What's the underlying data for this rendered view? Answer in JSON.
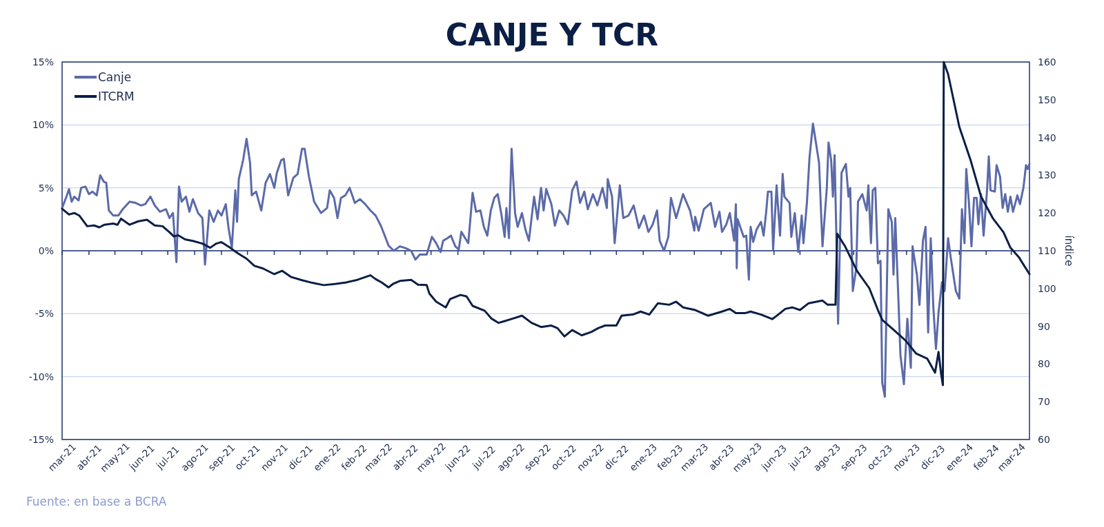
{
  "chart_data": {
    "type": "line",
    "title": "CANJE Y TCR",
    "y2label": "índice",
    "annotations": [
      "Fuente: en base a BCRA"
    ],
    "xlim": [
      "2021-03-01",
      "2024-03-22"
    ],
    "xticks": [
      {
        "value": "2021-03-01",
        "label": "mar-21"
      },
      {
        "value": "2021-04-01",
        "label": "abr-21"
      },
      {
        "value": "2021-05-01",
        "label": "may-21"
      },
      {
        "value": "2021-06-01",
        "label": "jun-21"
      },
      {
        "value": "2021-07-01",
        "label": "jul-21"
      },
      {
        "value": "2021-08-01",
        "label": "ago-21"
      },
      {
        "value": "2021-09-01",
        "label": "sep-21"
      },
      {
        "value": "2021-10-01",
        "label": "oct-21"
      },
      {
        "value": "2021-11-01",
        "label": "nov-21"
      },
      {
        "value": "2021-12-01",
        "label": "dic-21"
      },
      {
        "value": "2022-01-01",
        "label": "ene-22"
      },
      {
        "value": "2022-02-01",
        "label": "feb-22"
      },
      {
        "value": "2022-03-01",
        "label": "mar-22"
      },
      {
        "value": "2022-04-01",
        "label": "abr-22"
      },
      {
        "value": "2022-05-01",
        "label": "may-22"
      },
      {
        "value": "2022-06-01",
        "label": "jun-22"
      },
      {
        "value": "2022-07-01",
        "label": "jul-22"
      },
      {
        "value": "2022-08-01",
        "label": "ago-22"
      },
      {
        "value": "2022-09-01",
        "label": "sep-22"
      },
      {
        "value": "2022-10-01",
        "label": "oct-22"
      },
      {
        "value": "2022-11-01",
        "label": "nov-22"
      },
      {
        "value": "2022-12-01",
        "label": "dic-22"
      },
      {
        "value": "2023-01-01",
        "label": "ene-23"
      },
      {
        "value": "2023-02-01",
        "label": "feb-23"
      },
      {
        "value": "2023-03-01",
        "label": "mar-23"
      },
      {
        "value": "2023-04-01",
        "label": "abr-23"
      },
      {
        "value": "2023-05-01",
        "label": "may-23"
      },
      {
        "value": "2023-06-01",
        "label": "jun-23"
      },
      {
        "value": "2023-07-01",
        "label": "jul-23"
      },
      {
        "value": "2023-08-01",
        "label": "ago-23"
      },
      {
        "value": "2023-09-01",
        "label": "sep-23"
      },
      {
        "value": "2023-10-01",
        "label": "oct-23"
      },
      {
        "value": "2023-11-01",
        "label": "nov-23"
      },
      {
        "value": "2023-12-01",
        "label": "dic-23"
      },
      {
        "value": "2024-01-01",
        "label": "ene-24"
      },
      {
        "value": "2024-02-01",
        "label": "feb-24"
      },
      {
        "value": "2024-03-01",
        "label": "mar-24"
      }
    ],
    "ylim": [
      -15,
      15
    ],
    "yticks": [
      {
        "value": -15,
        "label": "-15%"
      },
      {
        "value": -10,
        "label": "-10%"
      },
      {
        "value": -5,
        "label": "-5%"
      },
      {
        "value": 0,
        "label": "0%"
      },
      {
        "value": 5,
        "label": "5%"
      },
      {
        "value": 10,
        "label": "10%"
      },
      {
        "value": 15,
        "label": "15%"
      }
    ],
    "y2lim": [
      60,
      160
    ],
    "y2ticks": [
      60,
      70,
      80,
      90,
      100,
      110,
      120,
      130,
      140,
      150,
      160
    ],
    "ref_lines": [
      {
        "axis": "y",
        "value": 0,
        "color": "#1d3270"
      }
    ],
    "grid": "y",
    "legend": "top left",
    "line_style": "solid",
    "marker": "none",
    "series": [
      {
        "name": "Canje",
        "color": "#5b6aa8",
        "x": [
          "2021-03-01",
          "2021-03-06",
          "2021-03-09",
          "2021-03-12",
          "2021-03-15",
          "2021-03-20",
          "2021-03-23",
          "2021-03-28",
          "2021-04-01",
          "2021-04-05",
          "2021-04-10",
          "2021-04-14",
          "2021-04-18",
          "2021-04-21",
          "2021-04-24",
          "2021-04-29",
          "2021-05-05",
          "2021-05-10",
          "2021-05-18",
          "2021-05-25",
          "2021-05-31",
          "2021-06-05",
          "2021-06-11",
          "2021-06-16",
          "2021-06-22",
          "2021-06-29",
          "2021-07-03",
          "2021-07-07",
          "2021-07-11",
          "2021-07-14",
          "2021-07-17",
          "2021-07-22",
          "2021-07-26",
          "2021-07-30",
          "2021-08-05",
          "2021-08-10",
          "2021-08-13",
          "2021-08-18",
          "2021-08-23",
          "2021-08-28",
          "2021-09-01",
          "2021-09-06",
          "2021-09-09",
          "2021-09-13",
          "2021-09-17",
          "2021-09-19",
          "2021-09-21",
          "2021-09-26",
          "2021-09-30",
          "2021-10-04",
          "2021-10-06",
          "2021-10-11",
          "2021-10-17",
          "2021-10-22",
          "2021-10-27",
          "2021-11-01",
          "2021-11-04",
          "2021-11-09",
          "2021-11-12",
          "2021-11-17",
          "2021-11-23",
          "2021-11-28",
          "2021-12-03",
          "2021-12-06",
          "2021-12-11",
          "2021-12-17",
          "2021-12-25",
          "2022-01-01",
          "2022-01-04",
          "2022-01-09",
          "2022-01-13",
          "2022-01-17",
          "2022-01-22",
          "2022-01-27",
          "2022-02-02",
          "2022-02-08",
          "2022-02-14",
          "2022-02-20",
          "2022-02-26",
          "2022-03-04",
          "2022-03-08",
          "2022-03-13",
          "2022-03-19",
          "2022-03-23",
          "2022-03-26",
          "2022-04-02",
          "2022-04-08",
          "2022-04-13",
          "2022-04-18",
          "2022-04-26",
          "2022-05-02",
          "2022-05-07",
          "2022-05-12",
          "2022-05-15",
          "2022-05-20",
          "2022-05-24",
          "2022-05-29",
          "2022-06-02",
          "2022-06-05",
          "2022-06-13",
          "2022-06-18",
          "2022-06-22",
          "2022-06-27",
          "2022-07-01",
          "2022-07-05",
          "2022-07-09",
          "2022-07-13",
          "2022-07-17",
          "2022-07-21",
          "2022-07-25",
          "2022-07-27",
          "2022-07-30",
          "2022-08-02",
          "2022-08-06",
          "2022-08-09",
          "2022-08-14",
          "2022-08-18",
          "2022-08-22",
          "2022-08-28",
          "2022-09-01",
          "2022-09-05",
          "2022-09-08",
          "2022-09-11",
          "2022-09-17",
          "2022-09-21",
          "2022-09-26",
          "2022-10-01",
          "2022-10-06",
          "2022-10-11",
          "2022-10-16",
          "2022-10-20",
          "2022-10-25",
          "2022-10-29",
          "2022-11-04",
          "2022-11-09",
          "2022-11-15",
          "2022-11-20",
          "2022-11-21",
          "2022-11-26",
          "2022-11-29",
          "2022-12-05",
          "2022-12-09",
          "2022-12-15",
          "2022-12-21",
          "2022-12-27",
          "2023-01-02",
          "2023-01-07",
          "2023-01-12",
          "2023-01-17",
          "2023-01-20",
          "2023-01-25",
          "2023-01-30",
          "2023-02-02",
          "2023-02-08",
          "2023-02-16",
          "2023-02-24",
          "2023-03-01",
          "2023-03-02",
          "2023-03-06",
          "2023-03-12",
          "2023-03-20",
          "2023-03-25",
          "2023-03-30",
          "2023-04-02",
          "2023-04-07",
          "2023-04-11",
          "2023-04-16",
          "2023-04-18",
          "2023-04-19",
          "2023-04-20",
          "2023-04-24",
          "2023-04-27",
          "2023-04-30",
          "2023-05-03",
          "2023-05-05",
          "2023-05-08",
          "2023-05-12",
          "2023-05-17",
          "2023-05-20",
          "2023-05-23",
          "2023-05-25",
          "2023-05-29",
          "2023-05-31",
          "2023-06-04",
          "2023-06-08",
          "2023-06-11",
          "2023-06-13",
          "2023-06-19",
          "2023-06-21",
          "2023-06-25",
          "2023-06-29",
          "2023-07-03",
          "2023-07-05",
          "2023-07-09",
          "2023-07-12",
          "2023-07-16",
          "2023-07-23",
          "2023-07-27",
          "2023-08-01",
          "2023-08-03",
          "2023-08-06",
          "2023-08-08",
          "2023-08-10",
          "2023-08-12",
          "2023-08-14",
          "2023-08-18",
          "2023-08-23",
          "2023-08-26",
          "2023-08-28",
          "2023-08-31",
          "2023-09-04",
          "2023-09-06",
          "2023-09-11",
          "2023-09-16",
          "2023-09-18",
          "2023-09-21",
          "2023-09-23",
          "2023-09-26",
          "2023-09-29",
          "2023-10-02",
          "2023-10-04",
          "2023-10-07",
          "2023-10-11",
          "2023-10-15",
          "2023-10-17",
          "2023-10-19",
          "2023-10-23",
          "2023-10-25",
          "2023-10-29",
          "2023-11-02",
          "2023-11-06",
          "2023-11-08",
          "2023-11-13",
          "2023-11-16",
          "2023-11-20",
          "2023-11-23",
          "2023-11-26",
          "2023-11-29",
          "2023-12-02",
          "2023-12-05",
          "2023-12-08",
          "2023-12-12",
          "2023-12-15",
          "2023-12-19",
          "2023-12-22",
          "2023-12-28",
          "2024-01-01",
          "2024-01-04",
          "2024-01-07",
          "2024-01-09",
          "2024-01-12",
          "2024-01-15",
          "2024-01-18",
          "2024-01-21",
          "2024-01-23",
          "2024-01-26",
          "2024-01-29",
          "2024-02-02",
          "2024-02-04",
          "2024-02-06",
          "2024-02-11",
          "2024-02-13",
          "2024-02-17",
          "2024-02-20",
          "2024-02-23",
          "2024-02-26",
          "2024-02-29",
          "2024-03-03",
          "2024-03-08",
          "2024-03-11",
          "2024-03-15",
          "2024-03-18",
          "2024-03-20",
          "2024-03-22"
        ],
        "values": [
          3.4,
          4.3,
          4.9,
          3.9,
          4.3,
          4.0,
          5.0,
          5.1,
          4.5,
          4.7,
          4.4,
          6.0,
          5.5,
          5.4,
          3.2,
          2.8,
          2.8,
          3.3,
          3.9,
          3.8,
          3.6,
          3.7,
          4.3,
          3.6,
          3.1,
          3.3,
          2.6,
          3.0,
          -0.9,
          5.1,
          3.9,
          4.3,
          3.1,
          4.1,
          3.0,
          2.6,
          -1.1,
          3.2,
          2.3,
          3.2,
          2.8,
          3.7,
          1.9,
          0.2,
          4.8,
          2.3,
          5.7,
          7.2,
          8.9,
          7.0,
          4.4,
          4.7,
          3.2,
          5.4,
          6.1,
          5.0,
          6.2,
          7.2,
          7.3,
          4.4,
          5.8,
          6.1,
          8.1,
          8.1,
          5.9,
          3.9,
          3.0,
          3.4,
          4.8,
          4.2,
          2.6,
          4.2,
          4.4,
          5.0,
          3.8,
          4.1,
          3.7,
          3.2,
          2.8,
          2.0,
          1.3,
          0.4,
          0.0,
          0.2,
          0.35,
          0.2,
          0.0,
          -0.7,
          -0.3,
          -0.3,
          1.1,
          0.6,
          -0.1,
          0.8,
          1.0,
          1.2,
          0.35,
          0.1,
          1.5,
          0.6,
          4.6,
          3.1,
          3.2,
          1.9,
          1.2,
          3.2,
          4.2,
          4.5,
          3.0,
          1.1,
          3.4,
          1.0,
          8.1,
          3.0,
          1.9,
          3.0,
          1.7,
          0.8,
          4.3,
          2.5,
          5.0,
          3.2,
          4.9,
          3.7,
          2.0,
          3.2,
          2.8,
          2.1,
          4.8,
          5.5,
          3.8,
          4.7,
          3.3,
          4.5,
          3.6,
          5.0,
          3.4,
          5.7,
          4.3,
          0.6,
          5.2,
          2.6,
          2.8,
          3.6,
          1.8,
          2.8,
          1.5,
          2.1,
          3.2,
          0.8,
          0.0,
          1.1,
          4.2,
          2.6,
          4.5,
          3.2,
          1.6,
          2.7,
          1.6,
          3.3,
          3.8,
          1.9,
          3.1,
          1.5,
          2.1,
          3.0,
          0.8,
          3.7,
          -1.4,
          2.5,
          1.7,
          1.1,
          1.2,
          -2.3,
          1.9,
          0.7,
          1.7,
          2.3,
          1.2,
          3.1,
          4.7,
          4.7,
          0.1,
          5.2,
          1.2,
          6.1,
          4.3,
          3.8,
          1.1,
          3.0,
          -0.1,
          2.8,
          0.6,
          3.8,
          7.4,
          10.1,
          7.0,
          0.35,
          5.0,
          8.6,
          7.2,
          4.3,
          7.6,
          1.2,
          -5.8,
          6.2,
          6.9,
          4.3,
          5.0,
          -3.2,
          -1.4,
          3.9,
          4.5,
          3.2,
          5.2,
          0.6,
          4.8,
          5.0,
          -1.0,
          -0.8,
          -10.5,
          -11.6,
          3.3,
          2.3,
          -1.9,
          2.6,
          -4.5,
          -8.3,
          -10.6,
          -5.4,
          -9.3,
          0.35,
          -1.9,
          -4.3,
          0.8,
          1.9,
          -6.5,
          1.0,
          -4.5,
          -7.8,
          -4.9,
          -2.5,
          -3.2,
          1.0,
          -0.5,
          -3.2,
          -3.8,
          3.3,
          0.6,
          6.5,
          3.9,
          0.35,
          4.2,
          4.2,
          2.1,
          4.5,
          1.2,
          4.8,
          7.5,
          4.8,
          4.7,
          6.8,
          5.9,
          3.4,
          4.5,
          3.1,
          4.3,
          3.1,
          4.4,
          3.7,
          5.0,
          6.8,
          6.5,
          6.9
        ]
      },
      {
        "name": "ITCRM",
        "color": "#0b1f45",
        "axis": "y2",
        "x": [
          "2021-03-01",
          "2021-03-09",
          "2021-03-15",
          "2021-03-21",
          "2021-03-30",
          "2021-04-07",
          "2021-04-13",
          "2021-04-19",
          "2021-04-29",
          "2021-05-04",
          "2021-05-08",
          "2021-05-18",
          "2021-05-28",
          "2021-06-07",
          "2021-06-16",
          "2021-06-25",
          "2021-07-03",
          "2021-07-08",
          "2021-07-13",
          "2021-07-21",
          "2021-07-30",
          "2021-08-10",
          "2021-08-19",
          "2021-08-26",
          "2021-09-01",
          "2021-09-11",
          "2021-09-20",
          "2021-09-30",
          "2021-10-09",
          "2021-10-19",
          "2021-11-01",
          "2021-11-10",
          "2021-11-20",
          "2021-12-03",
          "2021-12-15",
          "2021-12-28",
          "2022-01-10",
          "2022-01-23",
          "2022-02-05",
          "2022-02-20",
          "2022-02-26",
          "2022-03-05",
          "2022-03-13",
          "2022-03-18",
          "2022-03-26",
          "2022-04-08",
          "2022-04-16",
          "2022-04-26",
          "2022-04-29",
          "2022-05-07",
          "2022-05-18",
          "2022-05-23",
          "2022-06-04",
          "2022-06-11",
          "2022-06-18",
          "2022-07-02",
          "2022-07-10",
          "2022-07-18",
          "2022-07-24",
          "2022-08-03",
          "2022-08-14",
          "2022-08-25",
          "2022-09-05",
          "2022-09-17",
          "2022-09-24",
          "2022-10-02",
          "2022-10-11",
          "2022-10-22",
          "2022-11-02",
          "2022-11-10",
          "2022-11-18",
          "2022-12-01",
          "2022-12-07",
          "2022-12-20",
          "2022-12-29",
          "2023-01-08",
          "2023-01-18",
          "2023-01-31",
          "2023-02-08",
          "2023-02-16",
          "2023-03-02",
          "2023-03-17",
          "2023-04-02",
          "2023-04-11",
          "2023-04-18",
          "2023-04-29",
          "2023-05-05",
          "2023-05-17",
          "2023-05-30",
          "2023-06-06",
          "2023-06-14",
          "2023-06-22",
          "2023-07-01",
          "2023-07-11",
          "2023-07-20",
          "2023-07-27",
          "2023-08-02",
          "2023-08-11",
          "2023-08-13",
          "2023-08-22",
          "2023-09-05",
          "2023-09-19",
          "2023-09-29",
          "2023-10-04",
          "2023-10-17",
          "2023-10-31",
          "2023-11-12",
          "2023-11-25",
          "2023-12-04",
          "2023-12-08",
          "2023-12-11",
          "2023-12-13",
          "2023-12-14",
          "2023-12-19",
          "2024-01-01",
          "2024-01-14",
          "2024-01-26",
          "2024-02-09",
          "2024-02-21",
          "2024-02-29",
          "2024-03-10",
          "2024-03-22"
        ],
        "values": [
          121.1,
          119.6,
          120.0,
          119.3,
          116.5,
          116.7,
          116.2,
          116.9,
          117.2,
          116.9,
          118.5,
          116.9,
          117.8,
          118.2,
          116.7,
          116.5,
          114.9,
          113.8,
          114.1,
          113.0,
          112.6,
          111.9,
          110.8,
          111.9,
          112.3,
          110.8,
          109.3,
          107.9,
          106.0,
          105.3,
          103.8,
          104.7,
          103.1,
          102.2,
          101.5,
          100.9,
          101.2,
          101.6,
          102.3,
          103.5,
          102.5,
          101.6,
          100.3,
          101.2,
          102.0,
          102.3,
          101.0,
          100.9,
          98.7,
          96.5,
          95.0,
          97.2,
          98.3,
          97.9,
          95.4,
          94.1,
          92.0,
          90.9,
          91.3,
          92.0,
          92.8,
          90.9,
          89.8,
          90.2,
          89.5,
          87.3,
          89.0,
          87.6,
          88.5,
          89.5,
          90.2,
          90.2,
          92.8,
          93.1,
          93.9,
          93.1,
          96.1,
          95.7,
          96.5,
          95.0,
          94.3,
          92.8,
          93.9,
          94.6,
          93.5,
          93.5,
          93.9,
          93.1,
          91.9,
          93.1,
          94.6,
          95.0,
          94.3,
          96.1,
          96.5,
          96.8,
          95.7,
          95.7,
          114.5,
          111.2,
          104.6,
          100.1,
          94.3,
          91.7,
          89.1,
          86.2,
          82.8,
          81.4,
          77.7,
          83.2,
          77.3,
          74.4,
          160,
          156.8,
          142.8,
          134.0,
          124.4,
          118.5,
          114.9,
          110.8,
          108.2,
          103.8
        ]
      }
    ]
  }
}
